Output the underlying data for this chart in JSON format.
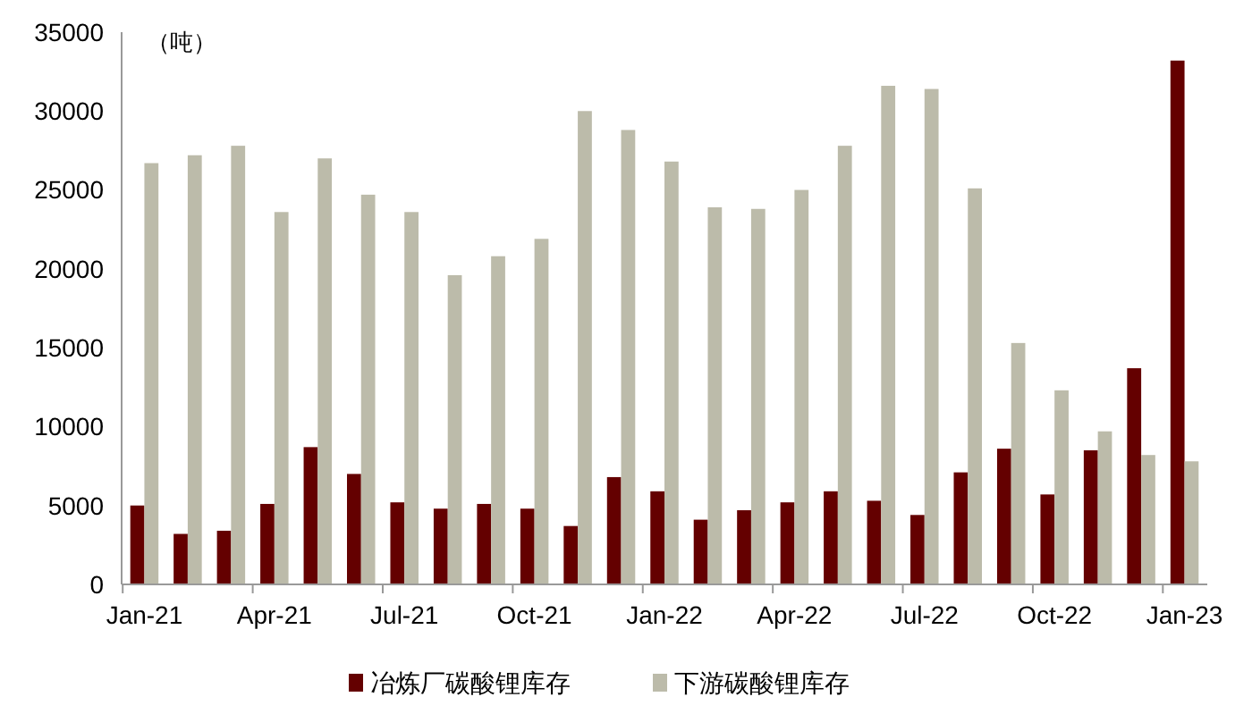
{
  "chart_data": {
    "type": "bar",
    "ylabel": "（吨）",
    "categories": [
      "Jan-21",
      null,
      null,
      "Apr-21",
      null,
      null,
      "Jul-21",
      null,
      null,
      "Oct-21",
      null,
      null,
      "Jan-22",
      null,
      null,
      "Apr-22",
      null,
      null,
      "Jul-22",
      null,
      null,
      "Oct-22",
      null,
      null,
      "Jan-23"
    ],
    "series": [
      {
        "name": "冶炼厂碳酸锂库存",
        "color": "#640000",
        "values": [
          5000,
          3200,
          3400,
          5100,
          8700,
          7000,
          5200,
          4800,
          5100,
          4800,
          3700,
          6800,
          5900,
          4100,
          4700,
          5200,
          5900,
          5300,
          4400,
          7100,
          8600,
          5700,
          8500,
          13700,
          33200
        ]
      },
      {
        "name": "下游碳酸锂库存",
        "color": "#bcbbaa",
        "values": [
          26700,
          27200,
          27800,
          23600,
          27000,
          24700,
          23600,
          19600,
          20800,
          21900,
          30000,
          28800,
          26800,
          23900,
          23800,
          25000,
          27800,
          31600,
          31400,
          25100,
          15300,
          12300,
          9700,
          8200,
          7800
        ]
      }
    ],
    "ylim": [
      0,
      35000
    ],
    "yticks": [
      0,
      5000,
      10000,
      15000,
      20000,
      25000,
      30000,
      35000
    ],
    "grid": false,
    "legend": "bottom"
  }
}
